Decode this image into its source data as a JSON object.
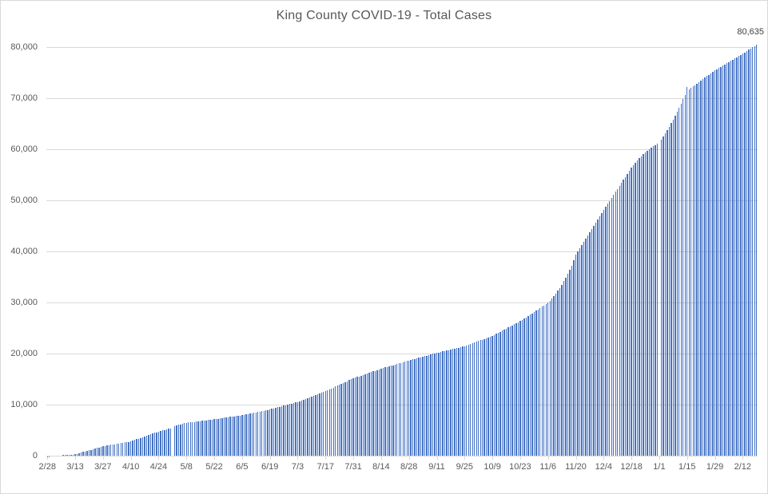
{
  "chart_data": {
    "type": "bar",
    "title": "King County COVID-19 - Total Cases",
    "last_value_label": "80,635",
    "grid": true,
    "legend": false,
    "ylim": [
      0,
      80000
    ],
    "colors": {
      "bar": "#4472C4",
      "gridline": "#D9D9D9",
      "axis": "#D9D9D9",
      "tick_label": "#595959",
      "title": "#595959",
      "data_label": "#404040"
    },
    "y_ticks": [
      {
        "value": 0,
        "label": "0"
      },
      {
        "value": 10000,
        "label": "10,000"
      },
      {
        "value": 20000,
        "label": "20,000"
      },
      {
        "value": 30000,
        "label": "30,000"
      },
      {
        "value": 40000,
        "label": "40,000"
      },
      {
        "value": 50000,
        "label": "50,000"
      },
      {
        "value": 60000,
        "label": "60,000"
      },
      {
        "value": 70000,
        "label": "70,000"
      },
      {
        "value": 80000,
        "label": "80,000"
      }
    ],
    "x_tick_interval": 14,
    "x_tick_labels": [
      "2/28",
      "3/13",
      "3/27",
      "4/10",
      "4/24",
      "5/8",
      "5/22",
      "6/5",
      "6/19",
      "7/3",
      "7/17",
      "7/31",
      "8/14",
      "8/28",
      "9/11",
      "9/25",
      "10/9",
      "10/23",
      "11/6",
      "11/20",
      "12/4",
      "12/18",
      "1/1",
      "1/15",
      "1/29",
      "2/12"
    ],
    "values": [
      30,
      60,
      90,
      115,
      140,
      170,
      200,
      225,
      255,
      280,
      310,
      335,
      365,
      390,
      420,
      530,
      645,
      760,
      870,
      985,
      1100,
      1210,
      1325,
      1440,
      1550,
      1665,
      1780,
      1890,
      2000,
      2070,
      2140,
      2205,
      2275,
      2340,
      2410,
      2475,
      2545,
      2615,
      2680,
      2750,
      2815,
      2885,
      2950,
      3090,
      3230,
      3370,
      3510,
      3645,
      3785,
      3925,
      4065,
      4200,
      4340,
      4480,
      4620,
      4760,
      4900,
      5010,
      5120,
      5230,
      5340,
      5450,
      5550,
      null,
      5900,
      6050,
      6180,
      6300,
      6400,
      6500,
      6600,
      6650,
      6700,
      6750,
      6800,
      6850,
      6900,
      6950,
      7000,
      7050,
      7100,
      7150,
      7200,
      7250,
      7300,
      7360,
      7415,
      7470,
      7530,
      7585,
      7645,
      7700,
      7755,
      7815,
      7870,
      7930,
      7985,
      8045,
      8100,
      8180,
      8260,
      8335,
      8415,
      8495,
      8570,
      8650,
      8730,
      8805,
      8885,
      8965,
      9040,
      9120,
      9200,
      9310,
      9415,
      9520,
      9630,
      9735,
      9845,
      9950,
      10055,
      10165,
      10270,
      10380,
      10485,
      10595,
      10700,
      10850,
      11000,
      11150,
      11300,
      11450,
      11600,
      11750,
      11900,
      12050,
      12200,
      12350,
      12500,
      12650,
      12800,
      12980,
      13155,
      13335,
      13515,
      13695,
      13870,
      14050,
      14230,
      14410,
      14585,
      14765,
      14945,
      15120,
      15300,
      15435,
      15570,
      15705,
      15845,
      15980,
      16115,
      16250,
      16385,
      16520,
      16655,
      16795,
      16930,
      17065,
      17200,
      17315,
      17430,
      17545,
      17655,
      17770,
      17885,
      18000,
      18115,
      18230,
      18345,
      18455,
      18570,
      18685,
      18800,
      18905,
      19015,
      19120,
      19230,
      19335,
      19445,
      19550,
      19655,
      19765,
      19870,
      19980,
      20085,
      20195,
      20300,
      20395,
      20485,
      20580,
      20670,
      20765,
      20855,
      20950,
      21045,
      21135,
      21230,
      21320,
      21415,
      21505,
      21600,
      21745,
      21885,
      22030,
      22170,
      22315,
      22455,
      22600,
      22745,
      22885,
      23030,
      23170,
      23315,
      23455,
      23600,
      23805,
      24015,
      24220,
      24430,
      24635,
      24845,
      25050,
      25260,
      25465,
      25675,
      25880,
      26090,
      26295,
      26500,
      26755,
      27015,
      27270,
      27530,
      27785,
      28045,
      28300,
      28560,
      28815,
      29075,
      29330,
      29590,
      29845,
      30100,
      30500,
      30950,
      31420,
      31920,
      32450,
      33030,
      33650,
      34320,
      35020,
      35760,
      36540,
      37380,
      38400,
      39500,
      40130,
      40760,
      41390,
      42020,
      42650,
      43280,
      43900,
      44530,
      45160,
      45790,
      46420,
      47050,
      47680,
      48300,
      48885,
      49470,
      50060,
      50645,
      51230,
      51815,
      52400,
      52985,
      53570,
      54160,
      54745,
      55330,
      55915,
      56500,
      57000,
      57480,
      57940,
      58380,
      58800,
      59190,
      59550,
      59880,
      60190,
      60480,
      60750,
      61000,
      61200,
      null,
      62000,
      62600,
      63220,
      63870,
      64550,
      65250,
      65970,
      66720,
      67500,
      68300,
      69120,
      69970,
      70850,
      72400,
      71900,
      72150,
      72440,
      72730,
      73020,
      73310,
      73600,
      73890,
      74180,
      74470,
      74760,
      75040,
      75320,
      75600,
      75840,
      76075,
      76310,
      76550,
      76785,
      77020,
      77260,
      77495,
      77730,
      77970,
      78205,
      78440,
      78670,
      78900,
      79150,
      79400,
      79650,
      79900,
      80150,
      80400,
      80635
    ]
  }
}
